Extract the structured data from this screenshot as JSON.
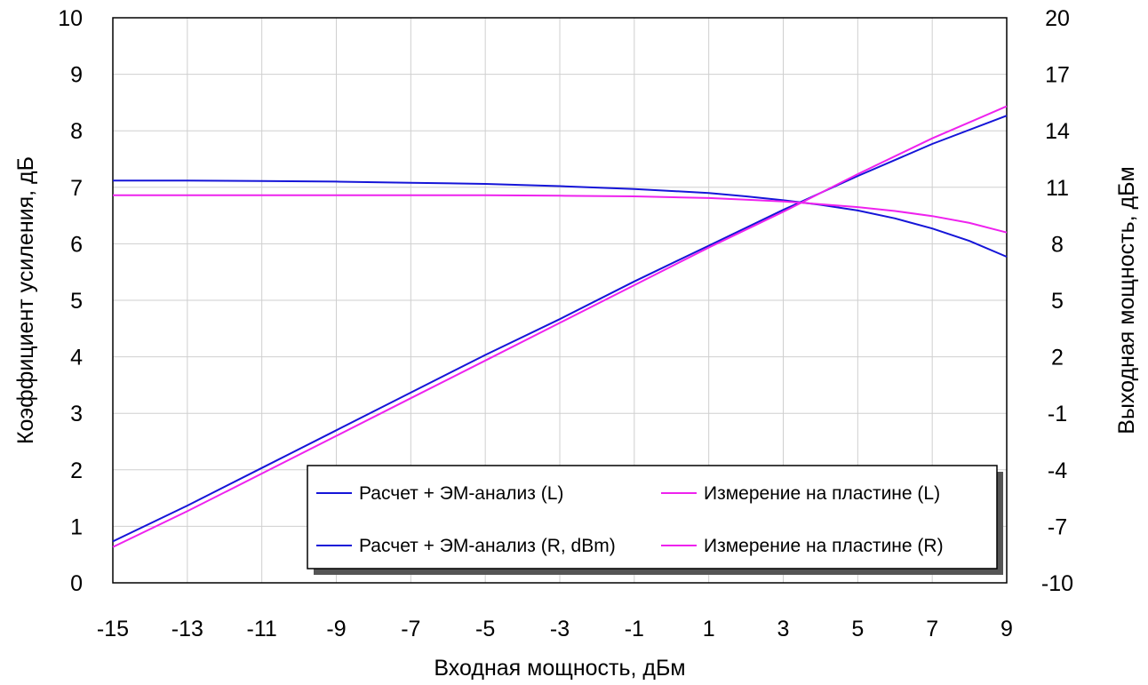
{
  "chart_data": {
    "type": "line",
    "title": "",
    "xlabel": "Входная мощность, дБм",
    "ylabel_left": "Коэффициент усиления, дБ",
    "ylabel_right": "Выходная мощность, дБм",
    "xlim": [
      -15,
      9
    ],
    "ylim_left": [
      0,
      10
    ],
    "ylim_right": [
      -10,
      20
    ],
    "x_ticks": [
      "-15",
      "-13",
      "-11",
      "-9",
      "-7",
      "-5",
      "-3",
      "-1",
      "1",
      "3",
      "5",
      "7",
      "9"
    ],
    "y_left_ticks": [
      "0",
      "1",
      "2",
      "3",
      "4",
      "5",
      "6",
      "7",
      "8",
      "9",
      "10"
    ],
    "y_right_ticks": [
      "-10",
      "-7",
      "-4",
      "-1",
      "2",
      "5",
      "8",
      "11",
      "14",
      "17",
      "20"
    ],
    "grid": true,
    "legend_position": "bottom-right",
    "series": [
      {
        "name": "Расчет + ЭМ-анализ (L)",
        "axis": "left",
        "color": "#1515d8",
        "x": [
          -15,
          -13,
          -11,
          -9,
          -7,
          -5,
          -3,
          -1,
          1,
          2,
          3,
          4,
          5,
          6,
          7,
          8,
          9
        ],
        "y": [
          7.12,
          7.12,
          7.11,
          7.1,
          7.08,
          7.06,
          7.02,
          6.97,
          6.9,
          6.84,
          6.77,
          6.69,
          6.59,
          6.45,
          6.27,
          6.05,
          5.77
        ]
      },
      {
        "name": "Расчет + ЭМ-анализ (R, dBm)",
        "axis": "right",
        "color": "#1515d8",
        "x": [
          -15,
          -13,
          -11,
          -9,
          -7,
          -5,
          -3,
          -1,
          1,
          3,
          5,
          7,
          9
        ],
        "y": [
          -7.8,
          -5.9,
          -3.9,
          -1.9,
          0.1,
          2.1,
          4.0,
          6.0,
          7.9,
          9.8,
          11.6,
          13.3,
          14.8
        ]
      },
      {
        "name": "Измерение на пластине (L)",
        "axis": "left",
        "color": "#ee22ee",
        "x": [
          -15,
          -13,
          -11,
          -9,
          -7,
          -5,
          -3,
          -1,
          1,
          2,
          3,
          4,
          5,
          6,
          7,
          8,
          9
        ],
        "y": [
          6.86,
          6.86,
          6.86,
          6.86,
          6.86,
          6.86,
          6.85,
          6.84,
          6.81,
          6.78,
          6.75,
          6.7,
          6.65,
          6.58,
          6.49,
          6.37,
          6.2
        ]
      },
      {
        "name": "Измерение на пластине (R)",
        "axis": "right",
        "color": "#ee22ee",
        "x": [
          -15,
          -13,
          -11,
          -9,
          -7,
          -5,
          -3,
          -1,
          1,
          3,
          5,
          7,
          9
        ],
        "y": [
          -8.1,
          -6.2,
          -4.2,
          -2.2,
          -0.2,
          1.8,
          3.8,
          5.8,
          7.8,
          9.7,
          11.7,
          13.6,
          15.3
        ]
      }
    ]
  }
}
